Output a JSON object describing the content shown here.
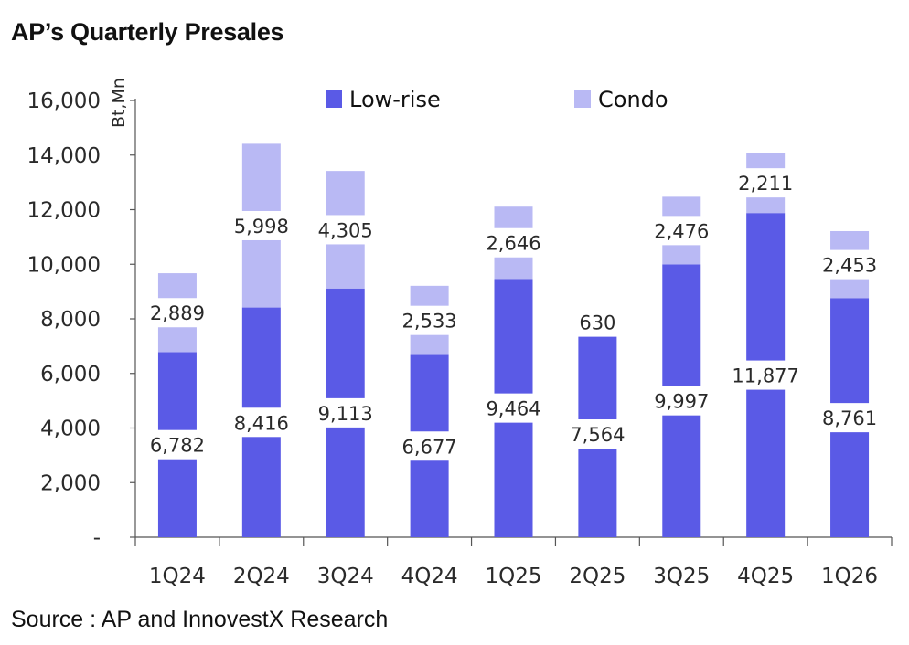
{
  "title": "AP’s Quarterly Presales",
  "source": "Source : AP and InnovestX Research",
  "chart_data": {
    "type": "bar",
    "stacked": true,
    "categories": [
      "1Q24",
      "2Q24",
      "3Q24",
      "4Q24",
      "1Q25",
      "2Q25",
      "3Q25",
      "4Q25",
      "1Q26"
    ],
    "series": [
      {
        "name": "Low-rise",
        "color": "#5a5ae6",
        "values": [
          6782,
          8416,
          9113,
          6677,
          9464,
          7564,
          9997,
          11877,
          8761
        ]
      },
      {
        "name": "Condo",
        "color": "#b9b9f4",
        "values": [
          2889,
          5998,
          4305,
          2533,
          2646,
          630,
          2476,
          2211,
          2453
        ]
      }
    ],
    "data_labels": [
      [
        "6,782",
        "8,416",
        "9,113",
        "6,677",
        "9,464",
        "7,564",
        "9,997",
        "11,877",
        "8,761"
      ],
      [
        "2,889",
        "5,998",
        "4,305",
        "2,533",
        "2,646",
        "630",
        "2,476",
        "2,211",
        "2,453"
      ]
    ],
    "ylabel": "Bt,Mn",
    "ylim": [
      0,
      16000
    ],
    "yticks": [
      0,
      2000,
      4000,
      6000,
      8000,
      10000,
      12000,
      14000,
      16000
    ],
    "ytick_labels": [
      "-",
      "2,000",
      "4,000",
      "6,000",
      "8,000",
      "10,000",
      "12,000",
      "14,000",
      "16,000"
    ],
    "grid": false,
    "legend_position": "top"
  }
}
